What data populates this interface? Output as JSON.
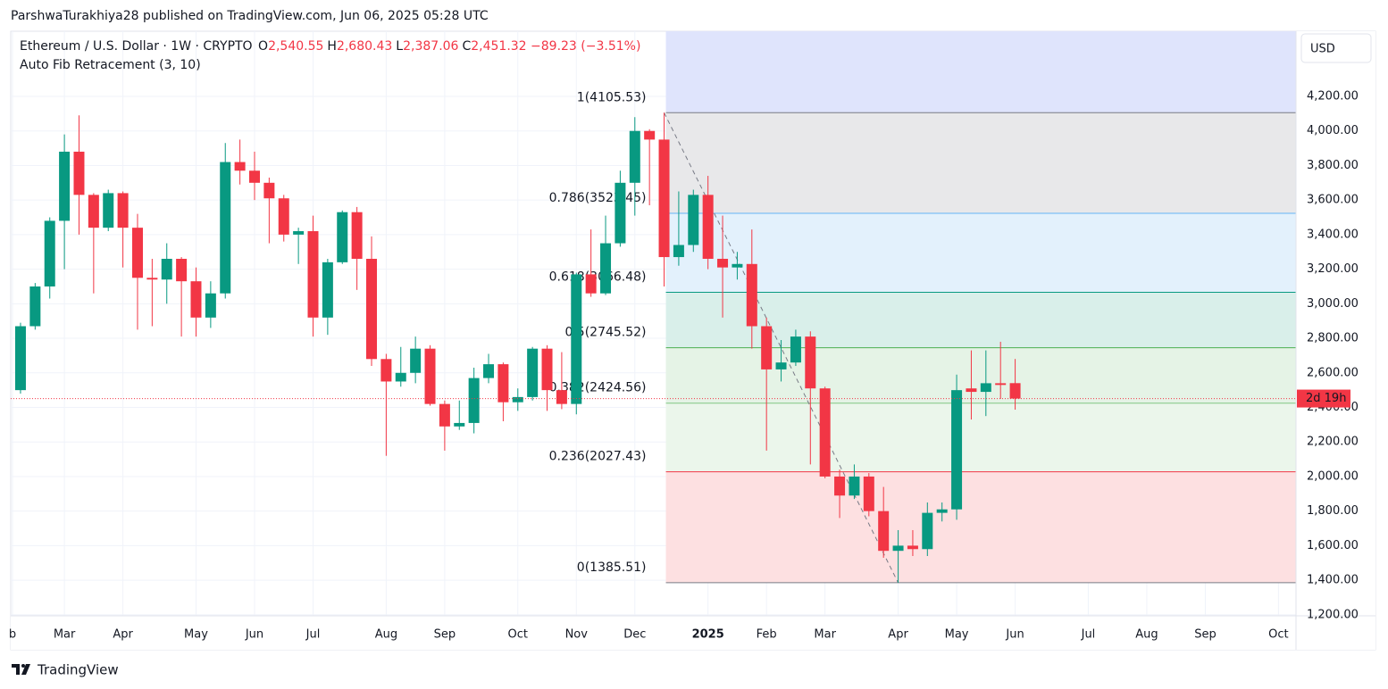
{
  "header": {
    "publisher": "ParshwaTurakhiya28 published on TradingView.com, Jun 06, 2025 05:28 UTC"
  },
  "footer": {
    "logo": "TradingView"
  },
  "chart_data": {
    "type": "candlestick",
    "title": "Ethereum / U.S. Dollar · 1W · CRYPTO",
    "ohlc_legend": [
      {
        "key": "O",
        "value": "2,540.55"
      },
      {
        "key": "H",
        "value": "2,680.43"
      },
      {
        "key": "L",
        "value": "2,387.06"
      },
      {
        "key": "C",
        "value": "2,451.32"
      }
    ],
    "change": "−89.23 (−3.51%)",
    "indicator": "Auto Fib Retracement (3, 10)",
    "currency": "USD",
    "countdown": "2d 19h",
    "up_color": "#089981",
    "down_color": "#f23645",
    "grid": true,
    "categories": [
      null,
      null,
      null,
      null,
      null,
      null,
      null,
      null,
      null,
      null,
      null,
      null,
      null,
      null,
      null,
      null,
      null,
      null,
      null,
      null,
      null,
      null,
      null,
      null,
      null,
      null,
      null,
      null,
      null,
      null,
      null,
      null,
      null,
      null,
      null,
      null,
      null,
      null,
      null,
      null,
      null,
      null,
      null,
      null,
      null,
      null,
      null,
      null,
      null,
      null,
      null,
      null,
      null,
      null,
      null,
      null,
      null,
      null,
      null,
      null,
      null,
      null,
      null,
      null,
      null,
      null,
      null,
      null,
      null
    ],
    "open": [
      2500,
      2870,
      3100,
      3480,
      3880,
      3630,
      3440,
      3640,
      3440,
      3150,
      3140,
      3260,
      3130,
      2920,
      3060,
      3820,
      3770,
      3700,
      3610,
      3400,
      3420,
      2920,
      3240,
      3530,
      3260,
      2680,
      2550,
      2600,
      2740,
      2420,
      2290,
      2310,
      2570,
      2650,
      2430,
      2460,
      2740,
      2500,
      2420,
      3170,
      3060,
      3350,
      3700,
      4000,
      3950,
      3270,
      3340,
      3630,
      3260,
      3210,
      3230,
      2870,
      2620,
      2660,
      2810,
      2510,
      2000,
      1890,
      2000,
      1800,
      1570,
      1600,
      1580,
      1790,
      1810,
      2510,
      2490,
      2540,
      2540.55
    ],
    "high": [
      2890,
      3120,
      3500,
      3980,
      4090,
      3640,
      3660,
      3650,
      3520,
      3260,
      3350,
      3270,
      3210,
      3130,
      3930,
      3950,
      3880,
      3730,
      3630,
      3440,
      3510,
      3260,
      3540,
      3560,
      3390,
      2710,
      2750,
      2810,
      2760,
      2440,
      2440,
      2630,
      2710,
      2660,
      2510,
      2750,
      2760,
      2720,
      3180,
      3430,
      3510,
      3770,
      4080,
      4010,
      4105.53,
      3650,
      3660,
      3740,
      3510,
      3300,
      3430,
      2920,
      2790,
      2850,
      2840,
      2520,
      2040,
      2070,
      2020,
      1940,
      1690,
      1690,
      1850,
      1850,
      2590,
      2730,
      2730,
      2780,
      2680.43
    ],
    "low": [
      2480,
      2850,
      3030,
      3200,
      3400,
      3060,
      3420,
      3210,
      2850,
      2870,
      3000,
      2810,
      2810,
      2860,
      3030,
      3690,
      3600,
      3350,
      3360,
      3230,
      2810,
      2820,
      3230,
      3080,
      2640,
      2120,
      2520,
      2540,
      2410,
      2150,
      2270,
      2250,
      2540,
      2320,
      2380,
      2440,
      2380,
      2390,
      2360,
      3040,
      3050,
      3330,
      3510,
      3570,
      3100,
      3220,
      3300,
      3200,
      2920,
      3140,
      2740,
      2150,
      2550,
      2640,
      2070,
      1990,
      1760,
      1870,
      1770,
      1530,
      1385.51,
      1540,
      1540,
      1740,
      1750,
      2330,
      2350,
      2450,
      2387.06
    ],
    "close": [
      2870,
      3100,
      3480,
      3880,
      3630,
      3440,
      3640,
      3440,
      3150,
      3140,
      3260,
      3130,
      2920,
      3060,
      3820,
      3770,
      3700,
      3610,
      3400,
      3420,
      2920,
      3240,
      3530,
      3260,
      2680,
      2550,
      2600,
      2740,
      2420,
      2290,
      2310,
      2570,
      2650,
      2430,
      2460,
      2740,
      2500,
      2420,
      3170,
      3060,
      3350,
      3700,
      4000,
      3950,
      3270,
      3340,
      3630,
      3260,
      3210,
      3230,
      2870,
      2620,
      2660,
      2810,
      2510,
      2000,
      1890,
      2000,
      1800,
      1570,
      1600,
      1580,
      1790,
      1810,
      2500,
      2490,
      2540,
      2530,
      2451.32
    ],
    "xlim": [
      -0.67,
      87.2
    ],
    "xticks": [
      {
        "value": -0.55,
        "label": "b"
      },
      {
        "value": 3,
        "label": "Mar"
      },
      {
        "value": 7,
        "label": "Apr"
      },
      {
        "value": 12,
        "label": "May"
      },
      {
        "value": 16,
        "label": "Jun"
      },
      {
        "value": 20,
        "label": "Jul"
      },
      {
        "value": 25,
        "label": "Aug"
      },
      {
        "value": 29,
        "label": "Sep"
      },
      {
        "value": 34,
        "label": "Oct"
      },
      {
        "value": 38,
        "label": "Nov"
      },
      {
        "value": 42,
        "label": "Dec"
      },
      {
        "value": 47,
        "label": "2025",
        "bold": true
      },
      {
        "value": 51,
        "label": "Feb"
      },
      {
        "value": 55,
        "label": "Mar"
      },
      {
        "value": 60,
        "label": "Apr"
      },
      {
        "value": 64,
        "label": "May"
      },
      {
        "value": 68,
        "label": "Jun"
      },
      {
        "value": 73,
        "label": "Jul"
      },
      {
        "value": 77,
        "label": "Aug"
      },
      {
        "value": 81,
        "label": "Sep"
      },
      {
        "value": 86,
        "label": "Oct"
      }
    ],
    "ylim": [
      1194,
      4577
    ],
    "yticks": [
      {
        "value": 1200,
        "label": "1,200.00"
      },
      {
        "value": 1400,
        "label": "1,400.00"
      },
      {
        "value": 1600,
        "label": "1,600.00"
      },
      {
        "value": 1800,
        "label": "1,800.00"
      },
      {
        "value": 2000,
        "label": "2,000.00"
      },
      {
        "value": 2200,
        "label": "2,200.00"
      },
      {
        "value": 2400,
        "label": "2,400.00"
      },
      {
        "value": 2600,
        "label": "2,600.00"
      },
      {
        "value": 2800,
        "label": "2,800.00"
      },
      {
        "value": 3000,
        "label": "3,000.00"
      },
      {
        "value": 3200,
        "label": "3,200.00"
      },
      {
        "value": 3400,
        "label": "3,400.00"
      },
      {
        "value": 3600,
        "label": "3,600.00"
      },
      {
        "value": 3800,
        "label": "3,800.00"
      },
      {
        "value": 4000,
        "label": "4,000.00"
      },
      {
        "value": 4200,
        "label": "4,200.00"
      }
    ],
    "fib": {
      "extension_fill": "#dfe4fc",
      "levels": [
        {
          "label": "1(4105.53)",
          "value": 4105.53,
          "color": "#787b86",
          "fill": "#e8e8ea"
        },
        {
          "label": "0.786(3523.45)",
          "value": 3523.45,
          "color": "#64b5f6",
          "fill": "#e3f1fc"
        },
        {
          "label": "0.618(3066.48)",
          "value": 3066.48,
          "color": "#089981",
          "fill": "#d9efea"
        },
        {
          "label": "0.5(2745.52)",
          "value": 2745.52,
          "color": "#4caf50",
          "fill": "#e5f3e6"
        },
        {
          "label": "0.382(2424.56)",
          "value": 2424.56,
          "color": "#81c784",
          "fill": "#ebf6eb"
        },
        {
          "label": "0.236(2027.43)",
          "value": 2027.43,
          "color": "#f23645",
          "fill": "#fde0e1"
        },
        {
          "label": "0(1385.51)",
          "value": 1385.51,
          "color": "#787b86"
        }
      ]
    }
  }
}
